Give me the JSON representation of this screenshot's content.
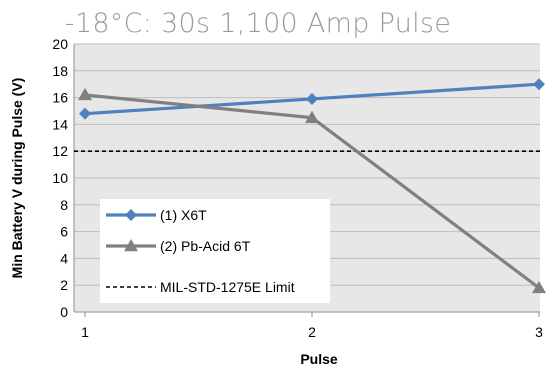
{
  "chart_data": {
    "type": "line",
    "title": "-18°C: 30s 1,100 Amp Pulse",
    "xlabel": "Pulse",
    "ylabel": "Min Battery V during Pulse (V)",
    "x": [
      1,
      2,
      3
    ],
    "xticks": [
      "1",
      "2",
      "3"
    ],
    "ylim": [
      0,
      20
    ],
    "yticks": [
      "0",
      "2",
      "4",
      "6",
      "8",
      "10",
      "12",
      "14",
      "16",
      "18",
      "20"
    ],
    "grid": true,
    "legend_position": "bottom-left",
    "series": [
      {
        "name": "(1) X6T",
        "values": [
          14.8,
          15.9,
          17.0
        ],
        "color": "#4f81bd",
        "marker": "diamond"
      },
      {
        "name": "(2) Pb-Acid 6T",
        "values": [
          16.2,
          14.5,
          1.8
        ],
        "color": "#808080",
        "marker": "triangle"
      }
    ],
    "reference_lines": [
      {
        "name": "MIL-STD-1275E Limit",
        "y": 12,
        "color": "#000000",
        "style": "dashed"
      }
    ]
  }
}
